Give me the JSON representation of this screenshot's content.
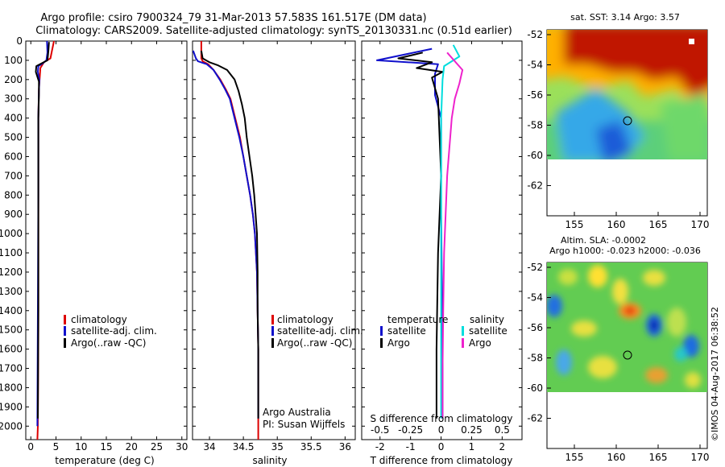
{
  "header": {
    "line1": "Argo profile: csiro 7900324_79 31-Mar-2013 57.583S 161.517E (DM data)",
    "line2": "Climatology: CARS2009. Satellite-adjusted climatology: synTS_20130331.nc (0.51d earlier)"
  },
  "depth_ticks": [
    0,
    100,
    200,
    300,
    400,
    500,
    600,
    700,
    800,
    900,
    1000,
    1100,
    1200,
    1300,
    1400,
    1500,
    1600,
    1700,
    1800,
    1900,
    2000
  ],
  "legend_profiles": [
    {
      "label": "climatology",
      "color": "#dd0000"
    },
    {
      "label": "satellite-adj. clim.",
      "color": "#1010cc"
    },
    {
      "label": "Argo(..raw -QC)",
      "color": "#000000"
    }
  ],
  "legend_diff": {
    "temperature_head": "temperature",
    "salinity_head": "salinity",
    "t_items": [
      {
        "label": "satellite",
        "color": "#1010cc"
      },
      {
        "label": "Argo",
        "color": "#000000"
      }
    ],
    "s_items": [
      {
        "label": "satellite",
        "color": "#00dddd"
      },
      {
        "label": "Argo",
        "color": "#ee22cc"
      }
    ]
  },
  "credit": {
    "line1": "Argo Australia",
    "line2": "PI: Susan Wijffels"
  },
  "diff_top_axis_label": "S difference from climatology",
  "sst_map": {
    "title": "sat. SST: 3.14  Argo: 3.57"
  },
  "sla_map": {
    "title1": "Altim. SLA: -0.0002",
    "title2": "Argo h1000: -0.023 h2000: -0.036"
  },
  "map_lat_ticks": [
    "-52",
    "-54",
    "-56",
    "-58",
    "-60",
    "-62"
  ],
  "map_lon_ticks": [
    "155",
    "160",
    "165",
    "170"
  ],
  "side_stamp": "©IMOS 04-Aug-2017 06:38:52",
  "chart_data": [
    {
      "type": "line",
      "xlabel": "temperature (deg C)",
      "xlim": [
        -1,
        31
      ],
      "ylim": [
        2070,
        0
      ],
      "x_ticks": [
        0,
        5,
        10,
        15,
        20,
        25,
        30
      ],
      "series": [
        {
          "name": "climatology",
          "color": "#dd0000",
          "points": [
            [
              4.6,
              0
            ],
            [
              4.2,
              50
            ],
            [
              3.9,
              90
            ],
            [
              2.6,
              110
            ],
            [
              1.9,
              140
            ],
            [
              1.8,
              180
            ],
            [
              1.6,
              250
            ],
            [
              1.5,
              400
            ],
            [
              1.5,
              600
            ],
            [
              1.5,
              1000
            ],
            [
              1.5,
              1500
            ],
            [
              1.4,
              2000
            ],
            [
              1.3,
              2070
            ]
          ]
        },
        {
          "name": "satellite-adj. clim.",
          "color": "#1010cc",
          "points": [
            [
              3.2,
              0
            ],
            [
              3.3,
              60
            ],
            [
              3.1,
              100
            ],
            [
              2.4,
              115
            ],
            [
              1.5,
              130
            ],
            [
              1.4,
              160
            ],
            [
              1.7,
              200
            ],
            [
              1.6,
              260
            ],
            [
              1.5,
              400
            ],
            [
              1.5,
              800
            ],
            [
              1.4,
              1400
            ],
            [
              1.3,
              2000
            ]
          ]
        },
        {
          "name": "Argo(..raw -QC)",
          "color": "#000000",
          "points": [
            [
              3.6,
              5
            ],
            [
              3.5,
              50
            ],
            [
              3.3,
              100
            ],
            [
              2.2,
              115
            ],
            [
              1.1,
              130
            ],
            [
              1.0,
              160
            ],
            [
              1.6,
              210
            ],
            [
              1.6,
              280
            ],
            [
              1.5,
              400
            ],
            [
              1.5,
              800
            ],
            [
              1.5,
              1400
            ],
            [
              1.4,
              1960
            ]
          ]
        }
      ]
    },
    {
      "type": "line",
      "xlabel": "salinity",
      "xlim": [
        33.75,
        36.15
      ],
      "ylim": [
        2070,
        0
      ],
      "x_ticks": [
        34,
        34.5,
        35,
        35.5,
        36
      ],
      "series": [
        {
          "name": "climatology",
          "color": "#dd0000",
          "points": [
            [
              33.88,
              0
            ],
            [
              33.88,
              90
            ],
            [
              33.9,
              105
            ],
            [
              33.98,
              120
            ],
            [
              34.06,
              150
            ],
            [
              34.16,
              200
            ],
            [
              34.24,
              250
            ],
            [
              34.31,
              300
            ],
            [
              34.38,
              400
            ],
            [
              34.45,
              500
            ],
            [
              34.5,
              600
            ],
            [
              34.55,
              700
            ],
            [
              34.6,
              800
            ],
            [
              34.64,
              900
            ],
            [
              34.67,
              1000
            ],
            [
              34.7,
              1200
            ],
            [
              34.71,
              1400
            ],
            [
              34.72,
              1600
            ],
            [
              34.72,
              1800
            ],
            [
              34.72,
              2000
            ],
            [
              34.72,
              2070
            ]
          ]
        },
        {
          "name": "satellite-adj. clim.",
          "color": "#1010cc",
          "points": [
            [
              33.76,
              50
            ],
            [
              33.8,
              90
            ],
            [
              33.83,
              105
            ],
            [
              33.96,
              120
            ],
            [
              34.06,
              150
            ],
            [
              34.15,
              200
            ],
            [
              34.23,
              250
            ],
            [
              34.3,
              300
            ],
            [
              34.37,
              400
            ],
            [
              34.44,
              500
            ],
            [
              34.5,
              600
            ],
            [
              34.55,
              700
            ],
            [
              34.6,
              800
            ],
            [
              34.64,
              900
            ],
            [
              34.67,
              1000
            ],
            [
              34.7,
              1200
            ],
            [
              34.71,
              1400
            ],
            [
              34.72,
              1600
            ],
            [
              34.72,
              1800
            ],
            [
              34.72,
              1960
            ]
          ]
        },
        {
          "name": "Argo(..raw -QC)",
          "color": "#000000",
          "points": [
            [
              33.88,
              50
            ],
            [
              33.9,
              90
            ],
            [
              34.0,
              110
            ],
            [
              34.12,
              125
            ],
            [
              34.26,
              150
            ],
            [
              34.37,
              200
            ],
            [
              34.43,
              260
            ],
            [
              34.48,
              330
            ],
            [
              34.52,
              400
            ],
            [
              34.55,
              500
            ],
            [
              34.59,
              600
            ],
            [
              34.63,
              700
            ],
            [
              34.66,
              800
            ],
            [
              34.68,
              900
            ],
            [
              34.7,
              1000
            ],
            [
              34.71,
              1200
            ],
            [
              34.71,
              1400
            ],
            [
              34.72,
              1600
            ],
            [
              34.72,
              1800
            ],
            [
              34.72,
              1960
            ]
          ]
        }
      ]
    },
    {
      "type": "line",
      "xlabel": "T difference from climatology",
      "top_axis_label": "S difference from climatology",
      "xlim": [
        -2.6,
        2.65
      ],
      "ylim": [
        2070,
        0
      ],
      "x_ticks": [
        -2,
        -1,
        0,
        1,
        2
      ],
      "top_ticks": [
        "-0.5",
        "-0.25",
        "0",
        "0.25",
        "0.5"
      ],
      "series": [
        {
          "name": "temperature satellite",
          "color": "#1010cc",
          "points": [
            [
              -0.3,
              40
            ],
            [
              -2.1,
              100
            ],
            [
              -0.1,
              120
            ],
            [
              -0.2,
              170
            ],
            [
              -0.2,
              280
            ],
            [
              0,
              400
            ],
            [
              0,
              900
            ],
            [
              0.05,
              1600
            ],
            [
              0.05,
              1960
            ]
          ]
        },
        {
          "name": "temperature Argo",
          "color": "#000000",
          "points": [
            [
              -0.6,
              60
            ],
            [
              -1.4,
              90
            ],
            [
              -0.3,
              110
            ],
            [
              -0.8,
              140
            ],
            [
              0.05,
              160
            ],
            [
              -0.3,
              190
            ],
            [
              -0.1,
              300
            ],
            [
              0,
              700
            ],
            [
              -0.1,
              1100
            ],
            [
              -0.15,
              1600
            ],
            [
              -0.15,
              1960
            ]
          ]
        },
        {
          "name": "salinity satellite",
          "color": "#00dddd",
          "points": [
            [
              0.4,
              20
            ],
            [
              0.6,
              80
            ],
            [
              0.1,
              130
            ],
            [
              0.05,
              200
            ],
            [
              0,
              400
            ],
            [
              0,
              1000
            ],
            [
              0,
              1500
            ],
            [
              0,
              1960
            ]
          ]
        },
        {
          "name": "salinity Argo",
          "color": "#ee22cc",
          "points": [
            [
              0.2,
              60
            ],
            [
              0.7,
              150
            ],
            [
              0.6,
              220
            ],
            [
              0.45,
              300
            ],
            [
              0.35,
              400
            ],
            [
              0.3,
              500
            ],
            [
              0.2,
              700
            ],
            [
              0.15,
              900
            ],
            [
              0.1,
              1100
            ],
            [
              0.07,
              1400
            ],
            [
              0.05,
              1700
            ],
            [
              0.05,
              1960
            ]
          ]
        }
      ]
    }
  ]
}
